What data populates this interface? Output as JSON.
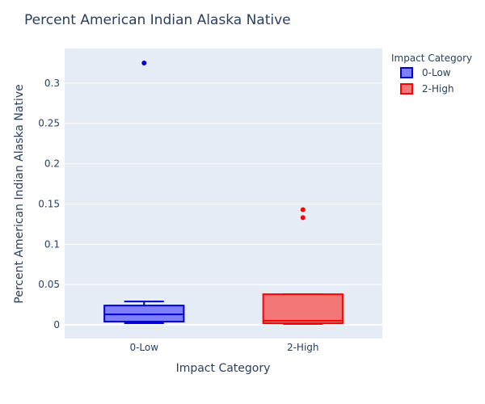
{
  "chart_data": {
    "type": "box",
    "title": "Percent American Indian Alaska Native",
    "xlabel": "Impact Category",
    "ylabel": "Percent American Indian Alaska Native",
    "categories": [
      "0-Low",
      "2-High"
    ],
    "ylim": [
      -0.017,
      0.343
    ],
    "yticks": [
      0,
      0.05,
      0.1,
      0.15,
      0.2,
      0.25,
      0.3
    ],
    "ytick_labels": [
      "0",
      "0.05",
      "0.1",
      "0.15",
      "0.2",
      "0.25",
      "0.3"
    ],
    "grid": true,
    "legend": {
      "title": "Impact Category",
      "placement": "right",
      "entries": [
        "0-Low",
        "2-High"
      ]
    },
    "series": [
      {
        "name": "0-Low",
        "category": "0-Low",
        "color": "#0000cc",
        "fill": "#7f7ffe",
        "min": 0.002,
        "q1": 0.004,
        "median": 0.013,
        "q3": 0.024,
        "max": 0.029,
        "outliers": [
          0.325
        ]
      },
      {
        "name": "2-High",
        "category": "2-High",
        "color": "#ff0000",
        "fill": "#f47777",
        "min": 0.001,
        "q1": 0.002,
        "median": 0.005,
        "q3": 0.038,
        "max": 0.038,
        "outliers": [
          0.133,
          0.143
        ]
      }
    ]
  }
}
